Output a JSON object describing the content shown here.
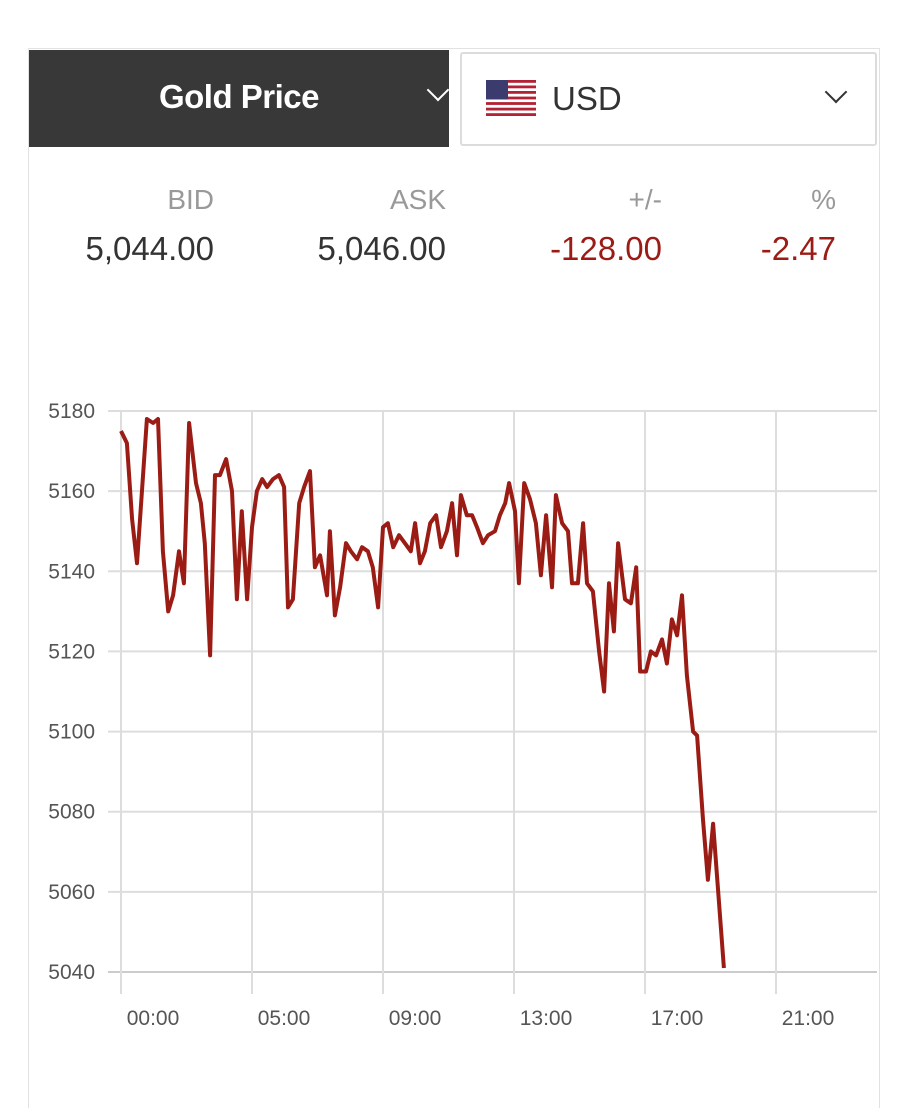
{
  "header": {
    "metal_label": "Gold Price",
    "currency_label": "USD",
    "flag_icon": "us-flag-icon"
  },
  "quote": {
    "bid_label": "BID",
    "bid": "5,044.00",
    "ask_label": "ASK",
    "ask": "5,046.00",
    "change_label": "+/-",
    "change": "-128.00",
    "percent_label": "%",
    "percent": "-2.47"
  },
  "colors": {
    "line": "#9b1c14",
    "negative": "#9b1c14",
    "button_bg": "#383838",
    "grid": "#dddddd"
  },
  "chart_data": {
    "type": "line",
    "title": "",
    "xlabel": "",
    "ylabel": "",
    "grid": true,
    "ylim": [
      5040,
      5180
    ],
    "yticks": [
      5180,
      5160,
      5140,
      5120,
      5100,
      5080,
      5060,
      5040
    ],
    "xlim_hours": [
      0,
      23
    ],
    "xticks": [
      {
        "at": 0,
        "label": "00:00"
      },
      {
        "at": 4,
        "label": "05:00"
      },
      {
        "at": 8,
        "label": "09:00"
      },
      {
        "at": 12,
        "label": "13:00"
      },
      {
        "at": 16,
        "label": "17:00"
      },
      {
        "at": 20,
        "label": "21:00"
      }
    ],
    "series": [
      {
        "points": [
          [
            0.0,
            5175
          ],
          [
            0.18,
            5172
          ],
          [
            0.34,
            5153
          ],
          [
            0.49,
            5142
          ],
          [
            0.79,
            5178
          ],
          [
            0.98,
            5177
          ],
          [
            1.13,
            5178
          ],
          [
            1.28,
            5145
          ],
          [
            1.44,
            5130
          ],
          [
            1.59,
            5134
          ],
          [
            1.77,
            5145
          ],
          [
            1.92,
            5137
          ],
          [
            2.08,
            5177
          ],
          [
            2.29,
            5162
          ],
          [
            2.44,
            5157
          ],
          [
            2.56,
            5147
          ],
          [
            2.72,
            5119
          ],
          [
            2.87,
            5164
          ],
          [
            3.02,
            5164
          ],
          [
            3.21,
            5168
          ],
          [
            3.39,
            5160
          ],
          [
            3.54,
            5133
          ],
          [
            3.69,
            5155
          ],
          [
            3.85,
            5133
          ],
          [
            4.0,
            5151
          ],
          [
            4.15,
            5160
          ],
          [
            4.31,
            5163
          ],
          [
            4.46,
            5161
          ],
          [
            4.64,
            5163
          ],
          [
            4.82,
            5164
          ],
          [
            4.98,
            5161
          ],
          [
            5.1,
            5131
          ],
          [
            5.25,
            5133
          ],
          [
            5.44,
            5157
          ],
          [
            5.59,
            5161
          ],
          [
            5.77,
            5165
          ],
          [
            5.92,
            5141
          ],
          [
            6.08,
            5144
          ],
          [
            6.29,
            5134
          ],
          [
            6.38,
            5150
          ],
          [
            6.53,
            5129
          ],
          [
            6.69,
            5136
          ],
          [
            6.87,
            5147
          ],
          [
            7.02,
            5145
          ],
          [
            7.21,
            5143
          ],
          [
            7.36,
            5146
          ],
          [
            7.54,
            5145
          ],
          [
            7.69,
            5141
          ],
          [
            7.85,
            5131
          ],
          [
            8.0,
            5151
          ],
          [
            8.15,
            5152
          ],
          [
            8.31,
            5146
          ],
          [
            8.49,
            5149
          ],
          [
            8.67,
            5147
          ],
          [
            8.85,
            5145
          ],
          [
            8.98,
            5152
          ],
          [
            9.13,
            5142
          ],
          [
            9.28,
            5145
          ],
          [
            9.44,
            5152
          ],
          [
            9.62,
            5154
          ],
          [
            9.77,
            5146
          ],
          [
            9.95,
            5150
          ],
          [
            10.11,
            5157
          ],
          [
            10.26,
            5144
          ],
          [
            10.38,
            5159
          ],
          [
            10.56,
            5154
          ],
          [
            10.72,
            5154
          ],
          [
            10.87,
            5151
          ],
          [
            11.05,
            5147
          ],
          [
            11.21,
            5149
          ],
          [
            11.42,
            5150
          ],
          [
            11.57,
            5154
          ],
          [
            11.73,
            5157
          ],
          [
            11.85,
            5162
          ],
          [
            12.03,
            5155
          ],
          [
            12.15,
            5137
          ],
          [
            12.31,
            5162
          ],
          [
            12.49,
            5158
          ],
          [
            12.67,
            5152
          ],
          [
            12.82,
            5139
          ],
          [
            12.98,
            5154
          ],
          [
            13.16,
            5136
          ],
          [
            13.28,
            5159
          ],
          [
            13.47,
            5152
          ],
          [
            13.65,
            5150
          ],
          [
            13.77,
            5137
          ],
          [
            13.95,
            5137
          ],
          [
            14.11,
            5152
          ],
          [
            14.23,
            5137
          ],
          [
            14.41,
            5135
          ],
          [
            14.6,
            5120
          ],
          [
            14.75,
            5110
          ],
          [
            14.9,
            5137
          ],
          [
            15.05,
            5125
          ],
          [
            15.18,
            5147
          ],
          [
            15.39,
            5133
          ],
          [
            15.57,
            5132
          ],
          [
            15.73,
            5141
          ],
          [
            15.85,
            5115
          ],
          [
            16.03,
            5115
          ],
          [
            16.18,
            5120
          ],
          [
            16.34,
            5119
          ],
          [
            16.52,
            5123
          ],
          [
            16.67,
            5117
          ],
          [
            16.82,
            5128
          ],
          [
            16.98,
            5124
          ],
          [
            17.13,
            5134
          ],
          [
            17.28,
            5114
          ],
          [
            17.47,
            5100
          ],
          [
            17.59,
            5099
          ],
          [
            17.77,
            5078
          ],
          [
            17.92,
            5063
          ],
          [
            18.08,
            5077
          ],
          [
            18.41,
            5041
          ]
        ]
      }
    ]
  }
}
